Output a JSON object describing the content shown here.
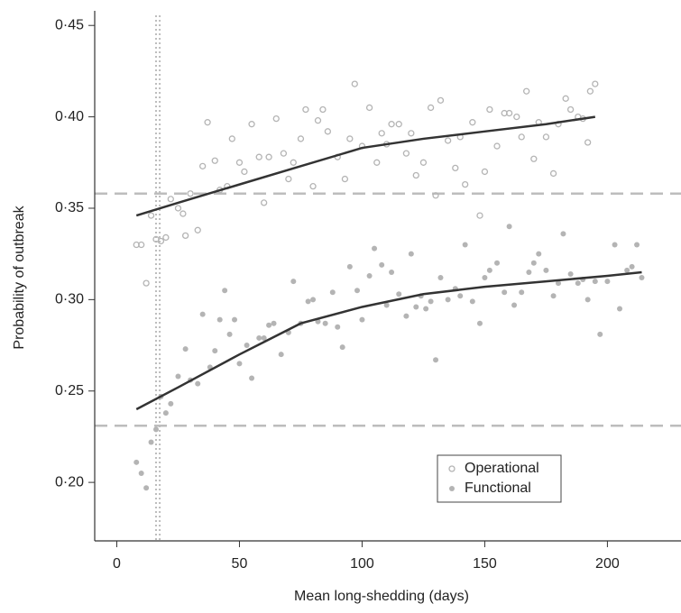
{
  "chart_data": {
    "type": "scatter",
    "xlabel": "Mean long-shedding (days)",
    "ylabel": "Probability of outbreak",
    "xlim": [
      -9,
      230
    ],
    "ylim": [
      0.168,
      0.458
    ],
    "xticks": [
      0,
      50,
      100,
      150,
      200
    ],
    "yticks": [
      {
        "value": 0.2,
        "label": "0·20"
      },
      {
        "value": 0.25,
        "label": "0·25"
      },
      {
        "value": 0.3,
        "label": "0·30"
      },
      {
        "value": 0.35,
        "label": "0·35"
      },
      {
        "value": 0.4,
        "label": "0·40"
      },
      {
        "value": 0.45,
        "label": "0·45"
      }
    ],
    "legend": "lower right",
    "hlines": [
      0.358,
      0.231
    ],
    "vlines": [
      16,
      17.5
    ],
    "series": [
      {
        "name": "Operational",
        "color": "#b4b4b4",
        "marker": "open",
        "x": [
          8,
          10,
          12,
          14,
          16,
          18,
          20,
          22,
          25,
          27,
          28,
          30,
          33,
          35,
          37,
          40,
          42,
          45,
          47,
          50,
          52,
          55,
          58,
          60,
          62,
          65,
          68,
          70,
          72,
          75,
          77,
          80,
          82,
          84,
          86,
          90,
          93,
          95,
          97,
          100,
          103,
          106,
          108,
          110,
          112,
          115,
          118,
          120,
          122,
          125,
          128,
          130,
          132,
          135,
          138,
          140,
          142,
          145,
          148,
          150,
          152,
          155,
          158,
          160,
          163,
          165,
          167,
          170,
          172,
          175,
          178,
          180,
          183,
          185,
          188,
          190,
          192,
          193,
          195
        ],
        "values": [
          0.33,
          0.33,
          0.309,
          0.346,
          0.333,
          0.332,
          0.334,
          0.355,
          0.35,
          0.347,
          0.335,
          0.358,
          0.338,
          0.373,
          0.397,
          0.376,
          0.36,
          0.362,
          0.388,
          0.375,
          0.37,
          0.396,
          0.378,
          0.353,
          0.378,
          0.399,
          0.38,
          0.366,
          0.375,
          0.388,
          0.404,
          0.362,
          0.398,
          0.404,
          0.392,
          0.378,
          0.366,
          0.388,
          0.418,
          0.384,
          0.405,
          0.375,
          0.391,
          0.385,
          0.396,
          0.396,
          0.38,
          0.391,
          0.368,
          0.375,
          0.405,
          0.357,
          0.409,
          0.387,
          0.372,
          0.389,
          0.363,
          0.397,
          0.346,
          0.37,
          0.404,
          0.384,
          0.402,
          0.402,
          0.4,
          0.389,
          0.414,
          0.377,
          0.397,
          0.389,
          0.369,
          0.396,
          0.41,
          0.404,
          0.4,
          0.399,
          0.386,
          0.414,
          0.418
        ]
      },
      {
        "name": "Functional",
        "color": "#b4b4b4",
        "marker": "filled",
        "x": [
          8,
          10,
          12,
          14,
          16,
          18,
          20,
          22,
          25,
          28,
          30,
          33,
          35,
          38,
          40,
          42,
          44,
          46,
          48,
          50,
          53,
          55,
          58,
          60,
          62,
          64,
          67,
          70,
          72,
          75,
          78,
          80,
          82,
          85,
          88,
          90,
          92,
          95,
          98,
          100,
          103,
          105,
          108,
          110,
          112,
          115,
          118,
          120,
          122,
          124,
          126,
          128,
          130,
          132,
          135,
          138,
          140,
          142,
          145,
          148,
          150,
          152,
          155,
          158,
          160,
          162,
          165,
          168,
          170,
          172,
          175,
          178,
          180,
          182,
          185,
          188,
          190,
          192,
          195,
          197,
          200,
          203,
          205,
          208,
          210,
          212,
          214
        ],
        "values": [
          0.211,
          0.205,
          0.197,
          0.222,
          0.229,
          0.247,
          0.238,
          0.243,
          0.258,
          0.273,
          0.256,
          0.254,
          0.292,
          0.263,
          0.272,
          0.289,
          0.305,
          0.281,
          0.289,
          0.265,
          0.275,
          0.257,
          0.279,
          0.279,
          0.286,
          0.287,
          0.27,
          0.282,
          0.31,
          0.287,
          0.299,
          0.3,
          0.288,
          0.287,
          0.304,
          0.285,
          0.274,
          0.318,
          0.305,
          0.289,
          0.313,
          0.328,
          0.319,
          0.297,
          0.315,
          0.303,
          0.291,
          0.325,
          0.296,
          0.302,
          0.295,
          0.299,
          0.267,
          0.312,
          0.3,
          0.306,
          0.302,
          0.33,
          0.299,
          0.287,
          0.312,
          0.316,
          0.32,
          0.304,
          0.34,
          0.297,
          0.304,
          0.315,
          0.32,
          0.325,
          0.316,
          0.302,
          0.309,
          0.336,
          0.314,
          0.309,
          0.311,
          0.3,
          0.31,
          0.281,
          0.31,
          0.33,
          0.295,
          0.316,
          0.318,
          0.33,
          0.312
        ]
      }
    ],
    "fits": [
      {
        "color": "#333333",
        "x": [
          8,
          25,
          50,
          75,
          100,
          125,
          150,
          175,
          195
        ],
        "values": [
          0.346,
          0.353,
          0.363,
          0.373,
          0.383,
          0.388,
          0.392,
          0.396,
          0.4
        ]
      },
      {
        "color": "#333333",
        "x": [
          8,
          25,
          50,
          75,
          100,
          125,
          150,
          175,
          200,
          214
        ],
        "values": [
          0.24,
          0.252,
          0.27,
          0.287,
          0.296,
          0.303,
          0.307,
          0.31,
          0.313,
          0.315
        ]
      }
    ]
  }
}
